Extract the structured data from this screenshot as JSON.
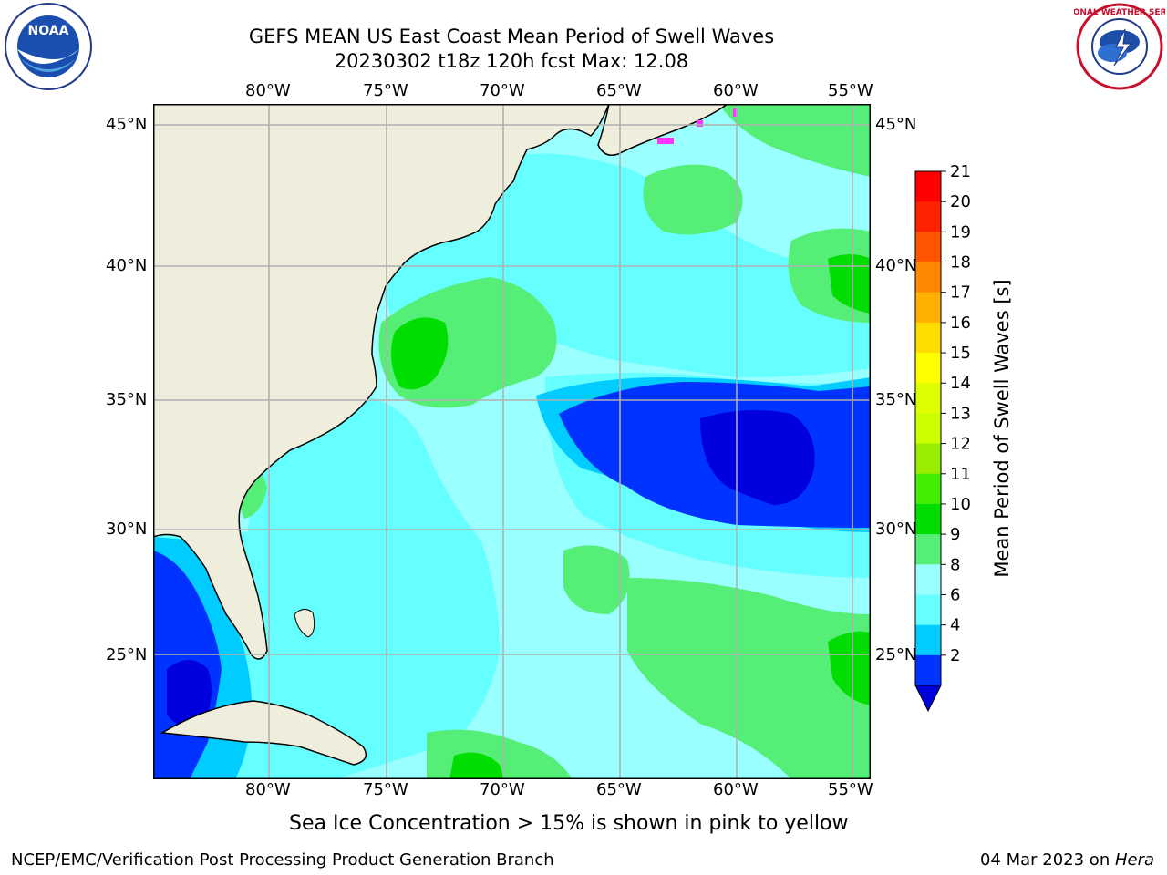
{
  "title": {
    "line1": "GEFS MEAN US East Coast Mean Period of Swell Waves",
    "line2": "20230302 t18z 120h fcst   Max: 12.08"
  },
  "map": {
    "lon_labels": [
      "80°W",
      "75°W",
      "70°W",
      "65°W",
      "60°W",
      "55°W"
    ],
    "lat_labels": [
      "45°N",
      "40°N",
      "35°N",
      "30°N",
      "25°N"
    ],
    "colors": {
      "land": "#EFEDDC",
      "ocean_base": "#99FFFF",
      "coast": "#000000",
      "grid": "#B0B0B0",
      "ice": "#FF33FF"
    }
  },
  "colorbar": {
    "label": "Mean Period of Swell Waves [s]",
    "ticks": [
      "2",
      "4",
      "6",
      "8",
      "9",
      "10",
      "11",
      "12",
      "13",
      "14",
      "15",
      "16",
      "17",
      "18",
      "19",
      "20",
      "21"
    ],
    "colors": [
      "#0033FF",
      "#00CCFF",
      "#66FFFF",
      "#99FFFF",
      "#55EE77",
      "#00DD00",
      "#44EE00",
      "#99EE00",
      "#CCFF00",
      "#DDFF00",
      "#FFFF00",
      "#FFDD00",
      "#FFB000",
      "#FF8800",
      "#FF5500",
      "#FF2200",
      "#FF0000"
    ],
    "extend_color": "#0000DD"
  },
  "caption": "Sea Ice Concentration > 15% is shown in pink to yellow",
  "footer": {
    "left": "NCEP/EMC/Verification Post Processing Product Generation Branch",
    "date": "04 Mar 2023 on ",
    "machine": "Hera"
  },
  "logos": {
    "noaa_text": "NOAA",
    "nws_text": "NATIONAL WEATHER SERVICE"
  }
}
